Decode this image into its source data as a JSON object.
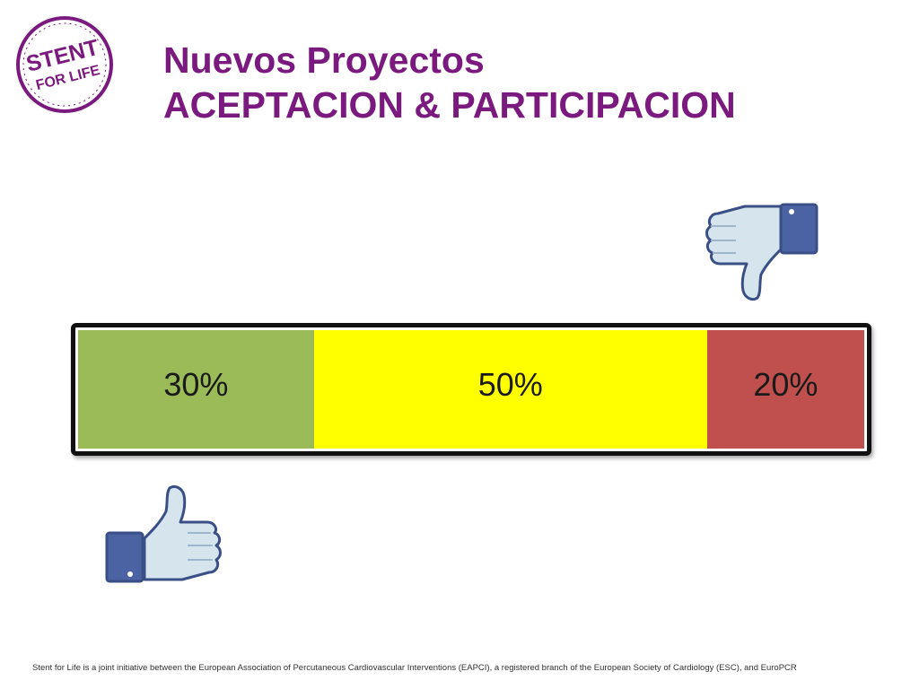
{
  "slide": {
    "title_line1": "Nuevos Proyectos",
    "title_line2": "ACEPTACION & PARTICIPACION",
    "footer": "Stent for Life is a joint initiative between the European Association of Percutaneous Cardiovascular Interventions (EAPCI), a registered branch of the European Society of Cardiology (ESC), and EuroPCR"
  },
  "logo": {
    "line1": "STENT",
    "line2": "FOR LIFE",
    "color": "#7b1a7e"
  },
  "icons": {
    "top_right": "thumbs-down-icon",
    "bottom_left": "thumbs-up-icon",
    "thumb_fill": "#d6e4ee",
    "cuff_fill": "#4b62a3"
  },
  "chart_data": {
    "type": "bar",
    "orientation": "horizontal-stacked",
    "title": "",
    "xlabel": "",
    "ylabel": "",
    "series": [
      {
        "label": "30%",
        "value": 30,
        "color": "#9bbb59"
      },
      {
        "label": "50%",
        "value": 50,
        "color": "#ffff00"
      },
      {
        "label": "20%",
        "value": 20,
        "color": "#c0504d"
      }
    ],
    "xlim": [
      0,
      100
    ]
  }
}
